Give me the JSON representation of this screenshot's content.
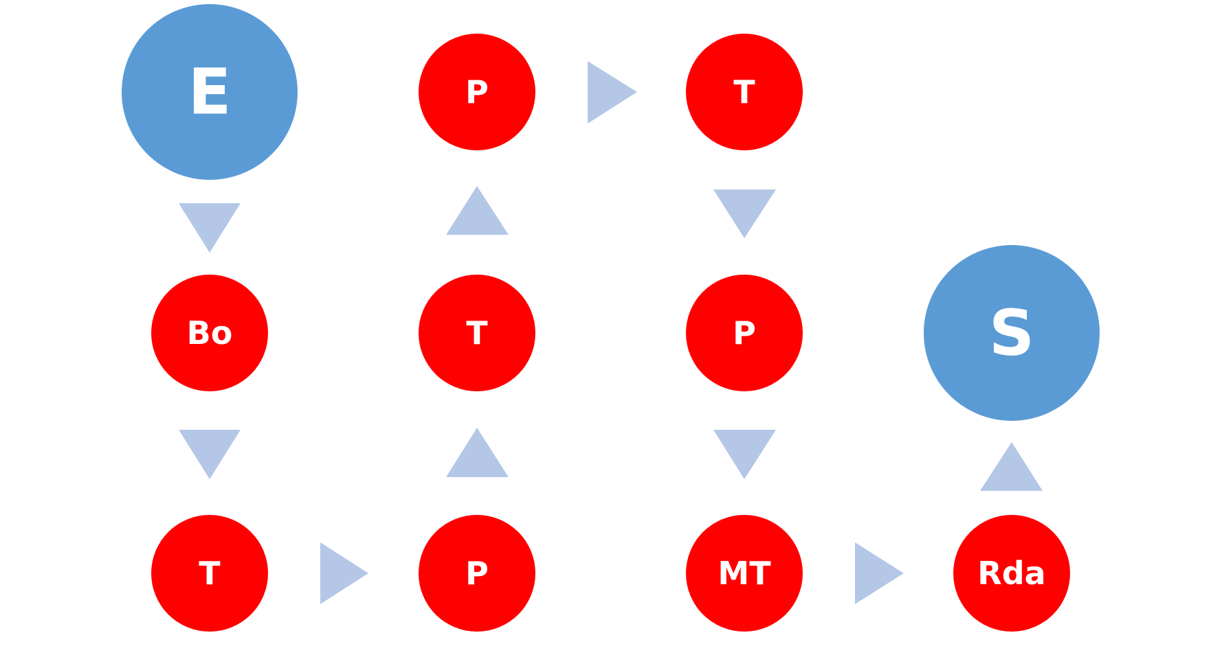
{
  "diagram": {
    "colors": {
      "terminal": "#5b9bd5",
      "process": "#ff0000",
      "arrow": "#b4c7e7",
      "label": "#ffffff"
    },
    "nodes": {
      "start": {
        "label": "E",
        "kind": "terminal"
      },
      "bo": {
        "label": "Bo",
        "kind": "process"
      },
      "t_bottom": {
        "label": "T",
        "kind": "process"
      },
      "p_bottom": {
        "label": "P",
        "kind": "process"
      },
      "t_mid": {
        "label": "T",
        "kind": "process"
      },
      "p_top": {
        "label": "P",
        "kind": "process"
      },
      "t_top": {
        "label": "T",
        "kind": "process"
      },
      "p_right": {
        "label": "P",
        "kind": "process"
      },
      "mt": {
        "label": "MT",
        "kind": "process"
      },
      "rda": {
        "label": "Rda",
        "kind": "process"
      },
      "end": {
        "label": "S",
        "kind": "terminal"
      }
    },
    "edges": [
      {
        "from": "start",
        "to": "bo",
        "direction": "down"
      },
      {
        "from": "bo",
        "to": "t_bottom",
        "direction": "down"
      },
      {
        "from": "t_bottom",
        "to": "p_bottom",
        "direction": "right"
      },
      {
        "from": "p_bottom",
        "to": "t_mid",
        "direction": "up"
      },
      {
        "from": "t_mid",
        "to": "p_top",
        "direction": "up"
      },
      {
        "from": "p_top",
        "to": "t_top",
        "direction": "right"
      },
      {
        "from": "t_top",
        "to": "p_right",
        "direction": "down"
      },
      {
        "from": "p_right",
        "to": "mt",
        "direction": "down"
      },
      {
        "from": "mt",
        "to": "rda",
        "direction": "right"
      },
      {
        "from": "rda",
        "to": "end",
        "direction": "up"
      }
    ]
  }
}
